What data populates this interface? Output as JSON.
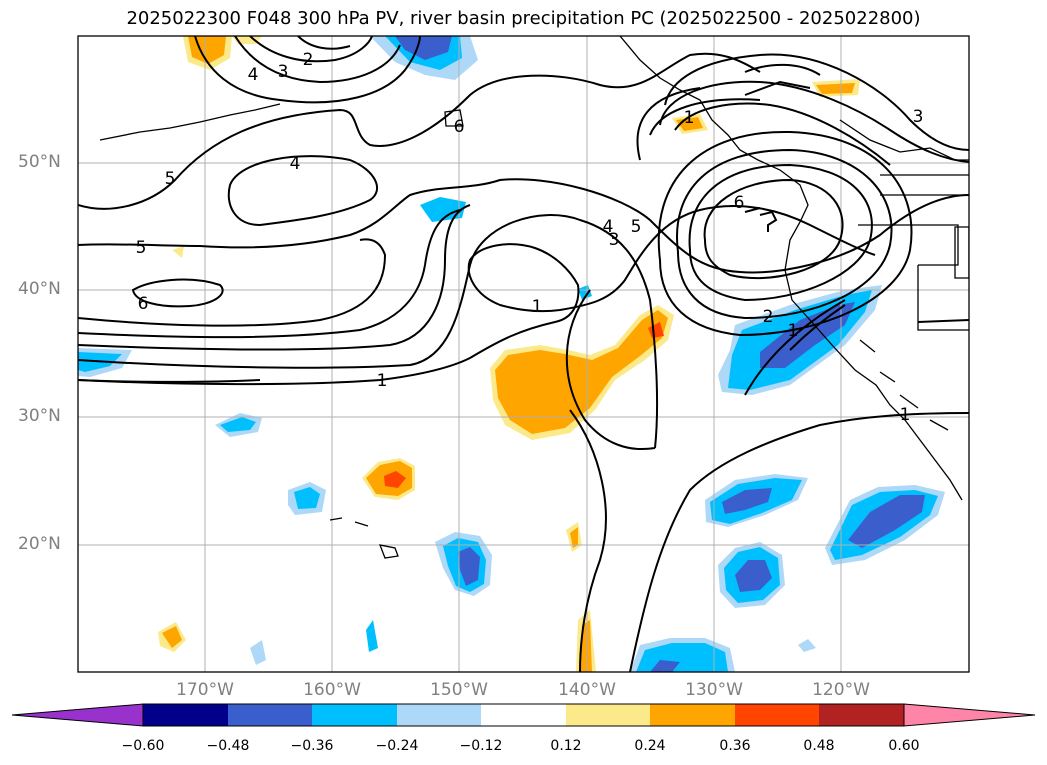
{
  "title": "2025022300 F048 300 hPa PV, river basin precipitation PC (2025022500 - 2025022800)",
  "lat_labels": [
    "50°N",
    "40°N",
    "30°N",
    "20°N"
  ],
  "lon_labels": [
    "170°W",
    "160°W",
    "150°W",
    "140°W",
    "130°W",
    "120°W"
  ],
  "contour_labels": [
    "2",
    "4",
    "3",
    "6",
    "4",
    "5",
    "5",
    "6",
    "4",
    "5",
    "3",
    "6",
    "3",
    "1",
    "2",
    "1",
    "1",
    "1",
    "1"
  ],
  "colorbar": {
    "ticks": [
      "−0.60",
      "−0.48",
      "−0.36",
      "−0.24",
      "−0.12",
      "0.12",
      "0.24",
      "0.36",
      "0.48",
      "0.60"
    ],
    "colors": [
      "#9932cc",
      "#00008b",
      "#3a5fcd",
      "#00bfff",
      "#add8f7",
      "#ffffff",
      "#fce98a",
      "#ffa500",
      "#ff4500",
      "#b22222",
      "#ff85a8"
    ]
  }
}
